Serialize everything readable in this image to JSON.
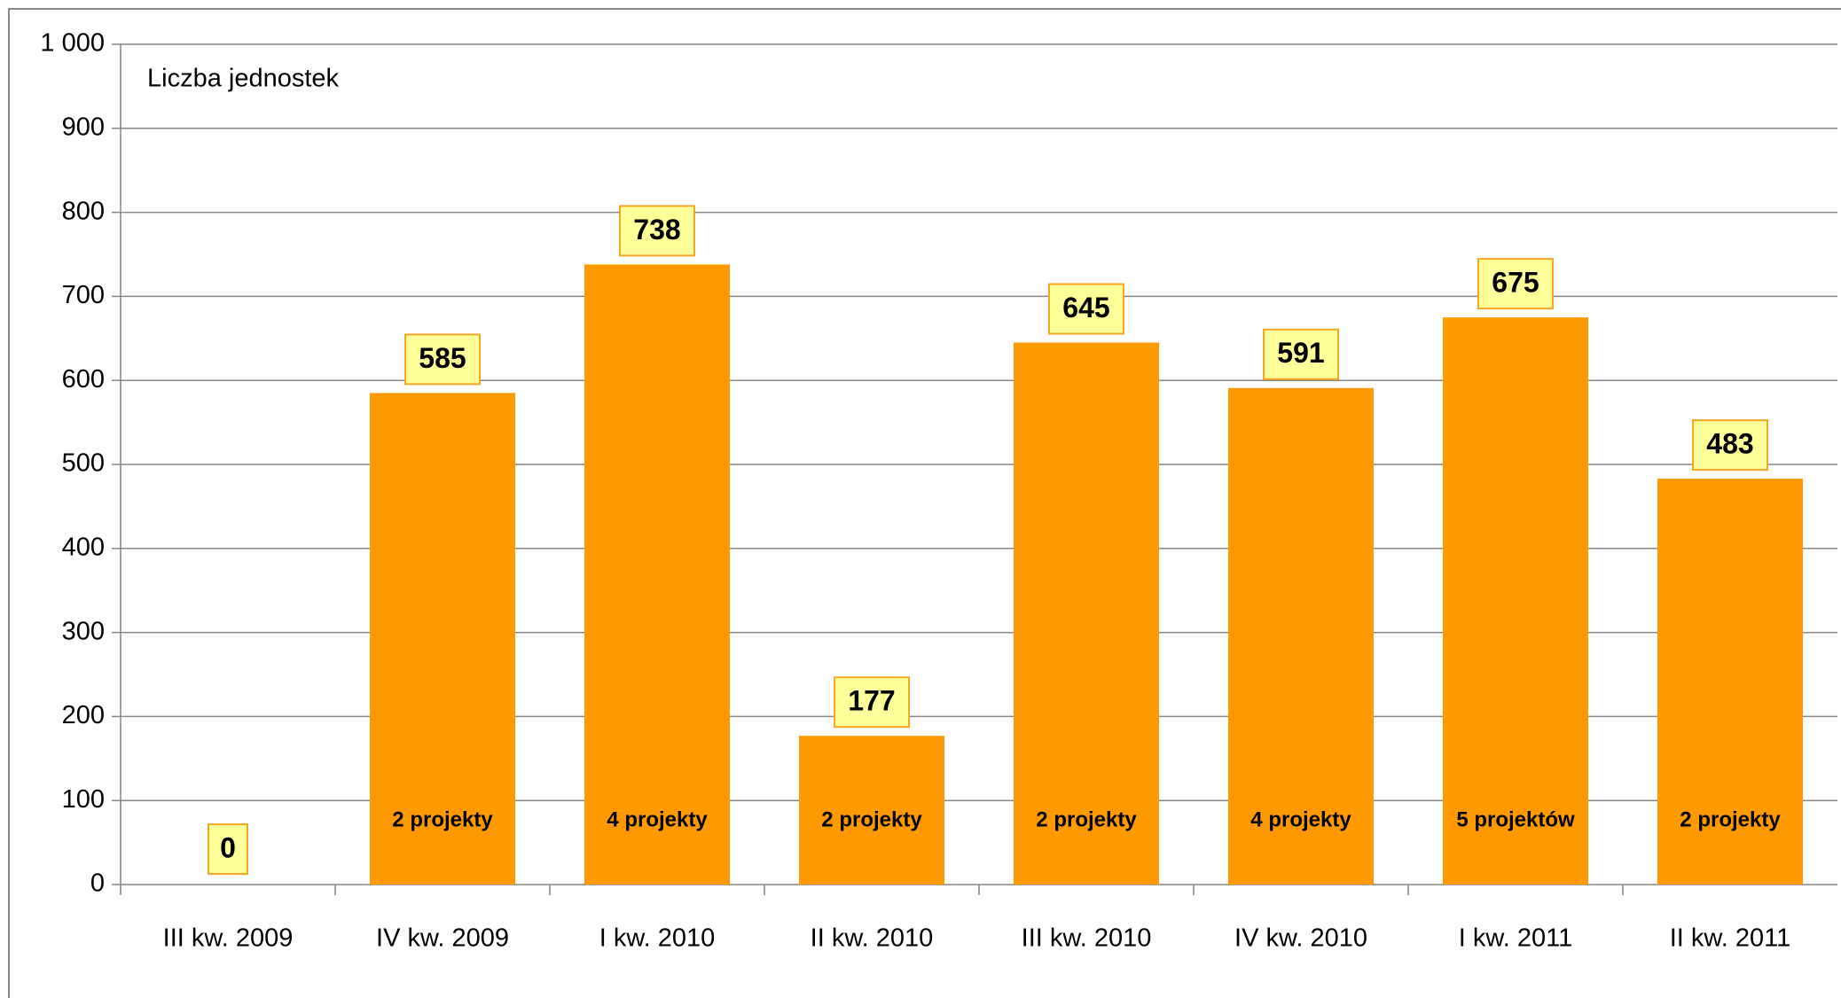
{
  "chart_data": {
    "type": "bar",
    "y_label": "Liczba jednostek",
    "categories": [
      "III kw. 2009",
      "IV kw. 2009",
      "I kw. 2010",
      "II kw. 2010",
      "III kw. 2010",
      "IV kw. 2010",
      "I kw. 2011",
      "II kw. 2011"
    ],
    "values": [
      0,
      585,
      738,
      177,
      645,
      591,
      675,
      483
    ],
    "annotations": [
      null,
      "2 projekty",
      "4 projekty",
      "2 projekty",
      "2 projekty",
      "4 projekty",
      "5 projektów",
      "2 projekty"
    ],
    "color": "#ff9900",
    "ylim": [
      0,
      1000
    ],
    "yticks": [
      0,
      100,
      200,
      300,
      400,
      500,
      600,
      700,
      800,
      900,
      {
        "value": 1000,
        "label": "1 000"
      }
    ],
    "grid": true
  }
}
